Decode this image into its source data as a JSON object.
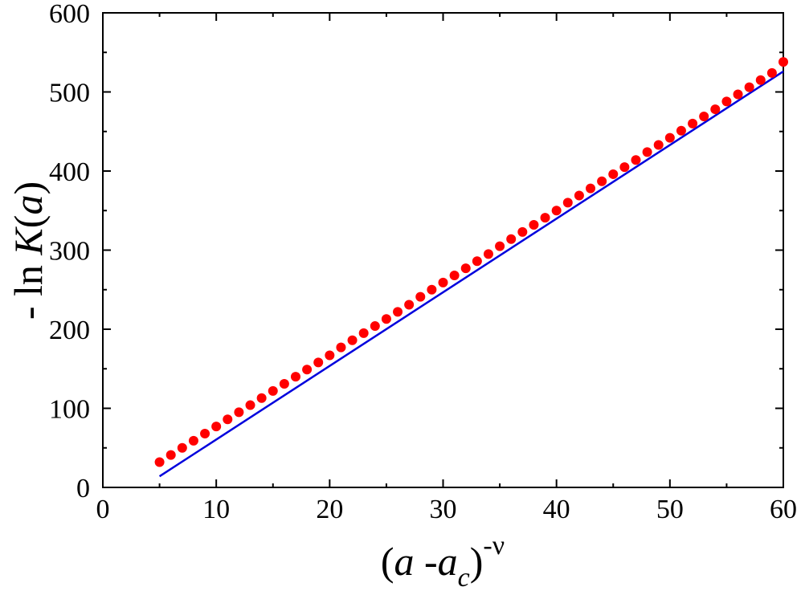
{
  "chart_data": {
    "type": "scatter",
    "title": "",
    "xlabel": "(a -a_c)^-ν",
    "ylabel": "- ln K(a)",
    "xlim": [
      0,
      60
    ],
    "ylim": [
      0,
      600
    ],
    "xticks": [
      0,
      10,
      20,
      30,
      40,
      50,
      60
    ],
    "yticks": [
      0,
      100,
      200,
      300,
      400,
      500,
      600
    ],
    "xtick_labels": [
      "0",
      "10",
      "20",
      "30",
      "40",
      "50",
      "60"
    ],
    "ytick_labels": [
      "0",
      "100",
      "200",
      "300",
      "400",
      "500",
      "600"
    ],
    "grid": false,
    "legend": "none",
    "series": [
      {
        "kind": "scatter",
        "color": "#ff0000",
        "marker": "circle",
        "x": [
          5,
          6,
          7,
          8,
          9,
          10,
          11,
          12,
          13,
          14,
          15,
          16,
          17,
          18,
          19,
          20,
          21,
          22,
          23,
          24,
          25,
          26,
          27,
          28,
          29,
          30,
          31,
          32,
          33,
          34,
          35,
          36,
          37,
          38,
          39,
          40,
          41,
          42,
          43,
          44,
          45,
          46,
          47,
          48,
          49,
          50,
          51,
          52,
          53,
          54,
          55,
          56,
          57,
          58,
          59,
          60
        ],
        "y": [
          32,
          41,
          50,
          59,
          68,
          77,
          86,
          95,
          104,
          113,
          122,
          131,
          140,
          149,
          158,
          167,
          177,
          186,
          195,
          204,
          213,
          222,
          231,
          241,
          250,
          259,
          268,
          277,
          286,
          295,
          305,
          314,
          323,
          332,
          341,
          350,
          360,
          369,
          378,
          387,
          396,
          405,
          414,
          424,
          433,
          442,
          451,
          460,
          469,
          478,
          488,
          497,
          506,
          515,
          524,
          538
        ]
      },
      {
        "kind": "line",
        "color": "#0000dd",
        "x": [
          5,
          60
        ],
        "y": [
          14,
          526
        ]
      }
    ]
  },
  "axis_text": {
    "x_open": "(",
    "x_a": "a",
    "x_minus": " -",
    "x_ac": "a",
    "x_sub": "c",
    "x_close": ")",
    "x_sup": "-ν",
    "y_prefix": "- ln ",
    "y_K": "K",
    "y_open": "(",
    "y_a": "a",
    "y_close": ")"
  }
}
